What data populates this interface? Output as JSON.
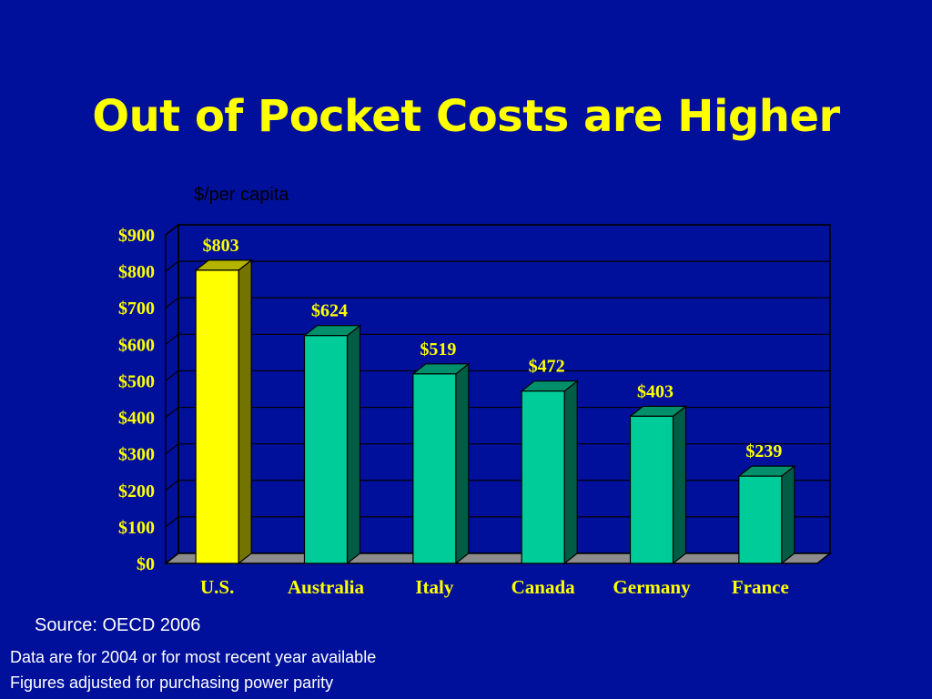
{
  "slide": {
    "title": "Out of Pocket Costs are Higher",
    "source": "Source: OECD 2006",
    "notes": [
      "Data are for 2004 or for most recent year available",
      "Figures adjusted for purchasing power parity"
    ]
  },
  "colors": {
    "background": "#00109a",
    "title": "#ffff00",
    "highlight_bar": "#ffff00",
    "bar": "#00cc99",
    "labels": "#ffff00"
  },
  "chart_data": {
    "type": "bar",
    "ylabel": "$/per capita",
    "categories": [
      "U.S.",
      "Australia",
      "Italy",
      "Canada",
      "Germany",
      "France"
    ],
    "values": [
      803,
      624,
      519,
      472,
      403,
      239
    ],
    "data_labels": [
      "$803",
      "$624",
      "$519",
      "$472",
      "$403",
      "$239"
    ],
    "yticks": [
      "$0",
      "$100",
      "$200",
      "$300",
      "$400",
      "$500",
      "$600",
      "$700",
      "$800",
      "$900"
    ],
    "ylim": [
      0,
      900
    ],
    "grid": true,
    "highlight_category": "U.S."
  }
}
